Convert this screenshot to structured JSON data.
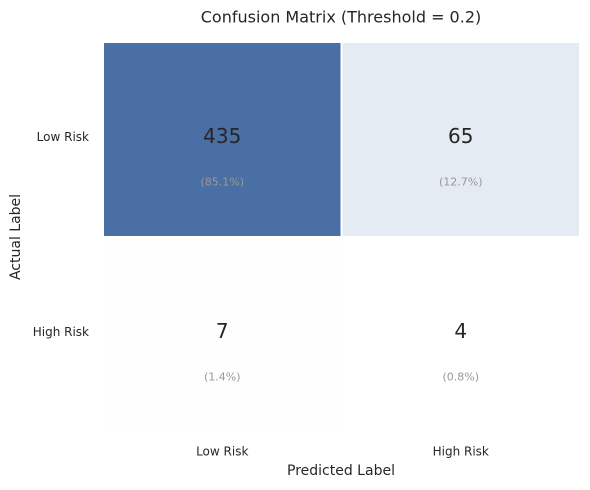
{
  "chart_data": {
    "type": "heatmap",
    "title": "Confusion Matrix (Threshold = 0.2)",
    "x_label": "Predicted Label",
    "y_label": "Actual Label",
    "x_categories": [
      "Low Risk",
      "High Risk"
    ],
    "y_categories": [
      "Low Risk",
      "High Risk"
    ],
    "values": [
      [
        435,
        65
      ],
      [
        7,
        4
      ]
    ],
    "annotations": [
      [
        "(85.1%)",
        "(12.7%)"
      ],
      [
        "(1.4%)",
        "(0.8%)"
      ]
    ],
    "colorscale": [
      "#ffffff",
      "#4a6fa5"
    ]
  }
}
